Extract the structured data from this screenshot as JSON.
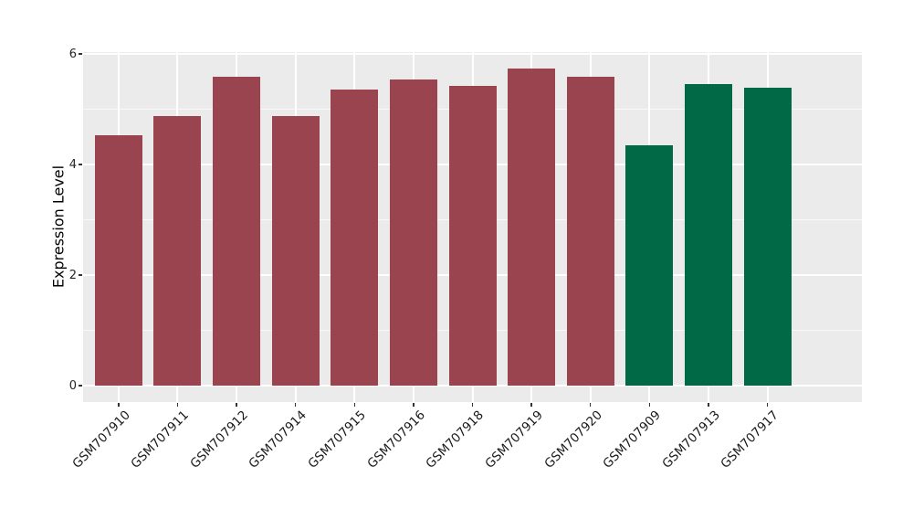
{
  "chart_data": {
    "type": "bar",
    "title": "",
    "xlabel": "",
    "ylabel": "Expression Level",
    "categories": [
      "GSM707910",
      "GSM707911",
      "GSM707912",
      "GSM707914",
      "GSM707915",
      "GSM707916",
      "GSM707918",
      "GSM707919",
      "GSM707920",
      "GSM707909",
      "GSM707913",
      "GSM707917"
    ],
    "values": [
      4.53,
      4.87,
      5.59,
      4.88,
      5.36,
      5.54,
      5.42,
      5.74,
      5.59,
      4.35,
      5.45,
      5.39
    ],
    "bar_groups": [
      "maroon",
      "maroon",
      "maroon",
      "maroon",
      "maroon",
      "maroon",
      "maroon",
      "maroon",
      "maroon",
      "green",
      "green",
      "green"
    ],
    "group_colors": {
      "maroon": "#9A4450",
      "green": "#016946"
    },
    "ylim": [
      0,
      6
    ],
    "yticks": [
      0,
      2,
      4,
      6
    ],
    "yminor": [
      1,
      3,
      5
    ],
    "x_tick_label_angle": 45,
    "grid": "white major and minor gridlines on gray panel",
    "legend_position": "none",
    "panel_background": "#EBEBEB",
    "figure_background": "#FFFFFF",
    "axis_tick_color": "#333333",
    "axis_text_color": "#262626"
  }
}
